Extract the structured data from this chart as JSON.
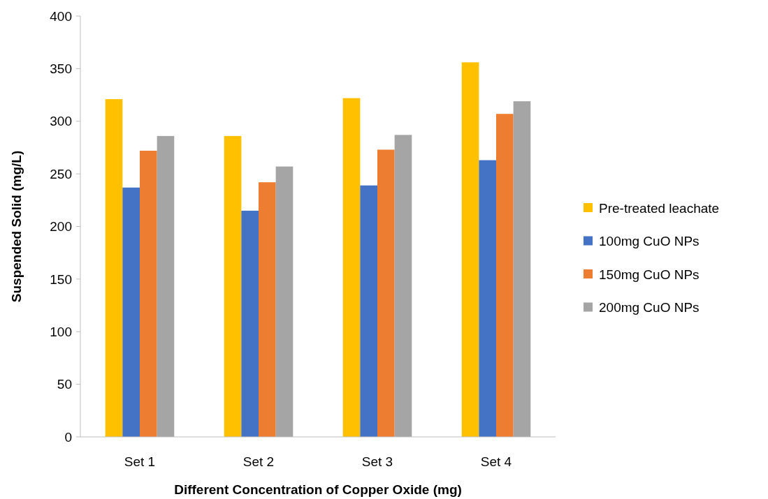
{
  "chart_data": {
    "type": "bar",
    "xlabel": "Different Concentration of Copper Oxide (mg)",
    "ylabel": "Suspended Solid (mg/L)",
    "categories": [
      "Set 1",
      "Set 2",
      "Set 3",
      "Set 4"
    ],
    "series": [
      {
        "name": "Pre-treated leachate",
        "color": "#ffc000",
        "values": [
          321,
          286,
          322,
          356
        ]
      },
      {
        "name": "100mg CuO NPs",
        "color": "#4472c4",
        "values": [
          237,
          215,
          239,
          263
        ]
      },
      {
        "name": "150mg CuO NPs",
        "color": "#ed7d31",
        "values": [
          272,
          242,
          273,
          307
        ]
      },
      {
        "name": "200mg CuO NPs",
        "color": "#a5a5a5",
        "values": [
          286,
          257,
          287,
          319
        ]
      }
    ],
    "ylim": [
      0,
      400
    ],
    "yticks": [
      0,
      50,
      100,
      150,
      200,
      250,
      300,
      350,
      400
    ],
    "grid": false,
    "legend": "right"
  }
}
